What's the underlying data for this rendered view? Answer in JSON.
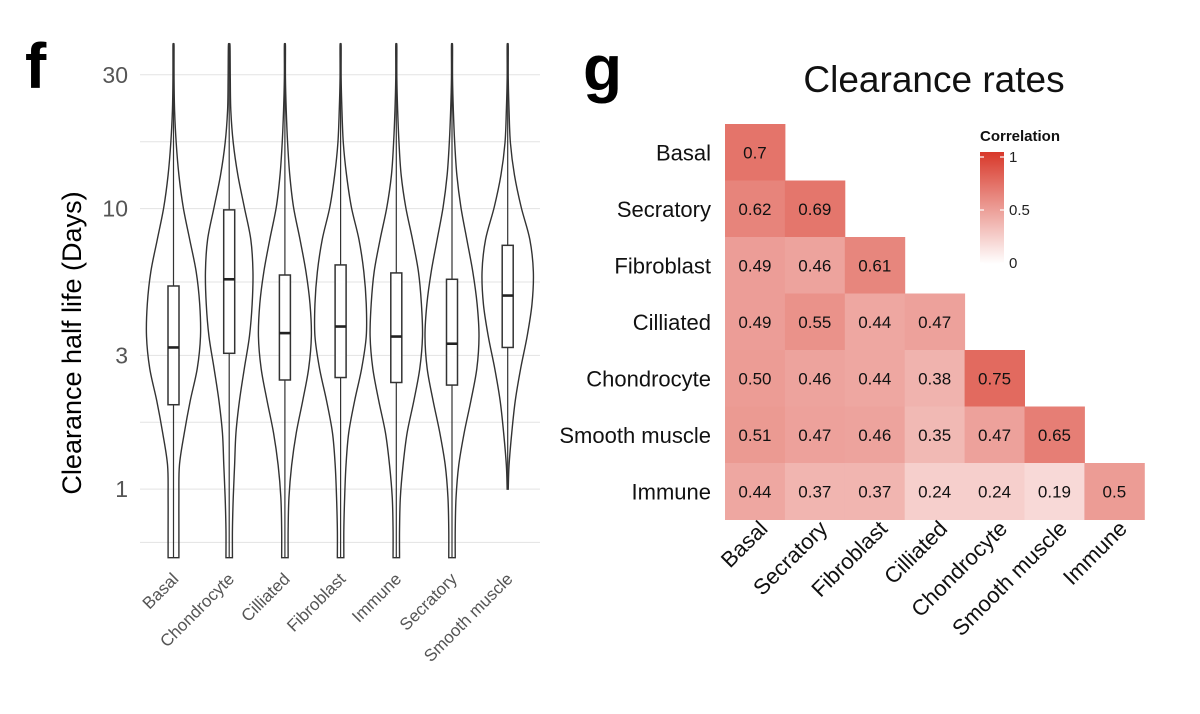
{
  "panel_f": {
    "label": "f",
    "chart_data": {
      "type": "violin",
      "ylabel": "Clearance half life (Days)",
      "yscale": "log",
      "ylim": [
        0.55,
        38
      ],
      "yticks": [
        1,
        3,
        10,
        30
      ],
      "ytick_labels": [
        "1",
        "3",
        "10",
        "30"
      ],
      "categories": [
        "Basal",
        "Chondrocyte",
        "Cilliated",
        "Fibroblast",
        "Immune",
        "Secratory",
        "Smooth muscle"
      ],
      "median": [
        3.2,
        5.6,
        3.6,
        3.8,
        3.5,
        3.3,
        4.9
      ],
      "q1": [
        2.0,
        3.05,
        2.45,
        2.5,
        2.4,
        2.35,
        3.2
      ],
      "q3": [
        5.3,
        9.9,
        5.8,
        6.3,
        5.9,
        5.6,
        7.4
      ],
      "min": [
        0.57,
        0.57,
        0.57,
        0.57,
        0.57,
        0.57,
        1.0
      ],
      "max": [
        38,
        38,
        38,
        38,
        38,
        38,
        38
      ],
      "half_width": [
        [
          0.2,
          0.2,
          0.2,
          0.22,
          0.4,
          0.62,
          0.88,
          1.0,
          0.97,
          0.84,
          0.6,
          0.36,
          0.2,
          0.1,
          0.04,
          0.02,
          0.02
        ],
        [
          0.12,
          0.12,
          0.15,
          0.2,
          0.25,
          0.38,
          0.56,
          0.75,
          0.85,
          0.88,
          0.8,
          0.56,
          0.32,
          0.15,
          0.06,
          0.04,
          0.03
        ],
        [
          0.12,
          0.12,
          0.15,
          0.25,
          0.42,
          0.66,
          0.88,
          0.98,
          0.93,
          0.78,
          0.56,
          0.32,
          0.18,
          0.1,
          0.05,
          0.02,
          0.02
        ],
        [
          0.12,
          0.12,
          0.15,
          0.2,
          0.3,
          0.52,
          0.78,
          0.95,
          0.95,
          0.86,
          0.68,
          0.4,
          0.22,
          0.1,
          0.05,
          0.02,
          0.02
        ],
        [
          0.12,
          0.12,
          0.15,
          0.25,
          0.4,
          0.65,
          0.87,
          0.97,
          0.93,
          0.82,
          0.6,
          0.35,
          0.18,
          0.1,
          0.05,
          0.02,
          0.02
        ],
        [
          0.12,
          0.12,
          0.15,
          0.25,
          0.45,
          0.7,
          0.92,
          1.0,
          0.93,
          0.77,
          0.55,
          0.33,
          0.18,
          0.1,
          0.05,
          0.02,
          0.02
        ],
        [
          0.0,
          0.0,
          0.0,
          0.05,
          0.15,
          0.28,
          0.48,
          0.72,
          0.9,
          0.95,
          0.82,
          0.5,
          0.25,
          0.1,
          0.05,
          0.02,
          0.02
        ]
      ]
    }
  },
  "panel_g": {
    "label": "g",
    "chart_data": {
      "type": "heatmap",
      "title": "Clearance rates",
      "rows": [
        "Basal",
        "Secratory",
        "Fibroblast",
        "Cilliated",
        "Chondrocyte",
        "Smooth muscle",
        "Immune"
      ],
      "columns": [
        "Basal",
        "Secratory",
        "Fibroblast",
        "Cilliated",
        "Chondrocyte",
        "Smooth muscle",
        "Immune"
      ],
      "values": [
        [
          "0.7"
        ],
        [
          "0.62",
          "0.69"
        ],
        [
          "0.49",
          "0.46",
          "0.61"
        ],
        [
          "0.49",
          "0.55",
          "0.44",
          "0.47"
        ],
        [
          "0.50",
          "0.46",
          "0.44",
          "0.38",
          "0.75"
        ],
        [
          "0.51",
          "0.47",
          "0.46",
          "0.35",
          "0.47",
          "0.65"
        ],
        [
          "0.44",
          "0.37",
          "0.37",
          "0.24",
          "0.24",
          "0.19",
          "0.5"
        ]
      ],
      "color_low": "#ffffff",
      "color_high": "#d8382a",
      "legend": {
        "title": "Correlation",
        "ticks": [
          1,
          0.5,
          0
        ],
        "tick_labels": [
          "1",
          "0.5",
          "0"
        ],
        "placement": "top-right"
      }
    }
  }
}
